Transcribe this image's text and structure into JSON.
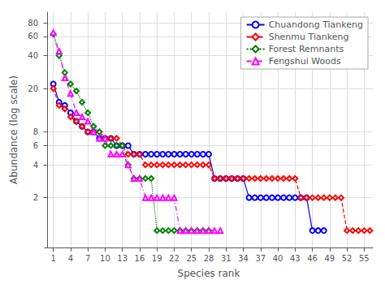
{
  "chart_data": {
    "type": "line",
    "xlabel": "Species rank",
    "ylabel": "Abundance (log scale)",
    "log": "y",
    "grid": true,
    "legend": "upper right",
    "xlim": [
      -0.5,
      56.5
    ],
    "ylim": [
      0.7,
      100
    ],
    "xticks": [
      1,
      4,
      7,
      10,
      13,
      16,
      19,
      22,
      25,
      28,
      31,
      34,
      37,
      40,
      43,
      46,
      49,
      52,
      55
    ],
    "yticks": [
      2,
      4,
      6,
      8,
      20,
      40,
      60,
      80
    ],
    "series": [
      {
        "name": "Chuandong Tiankeng",
        "color": "#0000ff",
        "marker": "circle",
        "line_style": "solid",
        "x": [
          1,
          2,
          3,
          4,
          5,
          6,
          7,
          8,
          9,
          10,
          11,
          12,
          13,
          14,
          15,
          16,
          17,
          18,
          19,
          20,
          21,
          22,
          23,
          24,
          25,
          26,
          27,
          28,
          29,
          30,
          31,
          32,
          33,
          34,
          35,
          36,
          37,
          38,
          39,
          40,
          41,
          42,
          43,
          44,
          45,
          46,
          47,
          48
        ],
        "values": [
          22,
          15,
          14,
          12,
          10,
          9,
          8,
          8,
          7,
          7,
          7,
          6,
          6,
          6,
          5,
          5,
          5,
          5,
          5,
          5,
          5,
          5,
          5,
          5,
          5,
          5,
          5,
          5,
          3,
          3,
          3,
          3,
          3,
          3,
          2,
          2,
          2,
          2,
          2,
          2,
          2,
          2,
          2,
          2,
          2,
          1,
          1,
          1
        ]
      },
      {
        "name": "Shenmu Tiankeng",
        "color": "#ff0000",
        "marker": "diamond",
        "line_style": "dashed",
        "x": [
          1,
          2,
          3,
          4,
          5,
          6,
          7,
          8,
          9,
          10,
          11,
          12,
          13,
          14,
          15,
          16,
          17,
          18,
          19,
          20,
          21,
          22,
          23,
          24,
          25,
          26,
          27,
          28,
          29,
          30,
          31,
          32,
          33,
          34,
          35,
          36,
          37,
          38,
          39,
          40,
          41,
          42,
          43,
          44,
          45,
          46,
          47,
          48,
          49,
          50,
          51,
          52,
          53,
          54,
          55,
          56
        ],
        "values": [
          20,
          14,
          13,
          11,
          10,
          9,
          8,
          8,
          8,
          7,
          7,
          7,
          6,
          5,
          5,
          5,
          4,
          4,
          4,
          4,
          4,
          4,
          4,
          4,
          4,
          4,
          4,
          4,
          3,
          3,
          3,
          3,
          3,
          3,
          3,
          3,
          3,
          3,
          3,
          3,
          3,
          3,
          3,
          2,
          2,
          2,
          2,
          2,
          2,
          2,
          2,
          1,
          1,
          1,
          1,
          1
        ]
      },
      {
        "name": "Forest Remnants",
        "color": "#008000",
        "marker": "diamond",
        "line_style": "dotted",
        "x": [
          1,
          2,
          3,
          4,
          5,
          6,
          7,
          8,
          9,
          10,
          11,
          12,
          13,
          14,
          15,
          16,
          17,
          18,
          19,
          20,
          21,
          22,
          23,
          24,
          25,
          26,
          27,
          28
        ],
        "values": [
          63,
          40,
          28,
          22,
          19,
          15,
          12,
          9,
          8,
          6,
          6,
          6,
          6,
          4,
          3,
          3,
          3,
          3,
          1,
          1,
          1,
          1,
          1,
          1,
          1,
          1,
          1,
          1
        ]
      },
      {
        "name": "Fengshui Woods",
        "color": "#ff00ff",
        "marker": "triangle",
        "line_style": "dashdot",
        "x": [
          1,
          2,
          3,
          4,
          5,
          6,
          7,
          8,
          9,
          10,
          11,
          12,
          13,
          14,
          15,
          16,
          17,
          18,
          19,
          20,
          21,
          22,
          23,
          24,
          25,
          26,
          27,
          28,
          29,
          30
        ],
        "values": [
          65,
          44,
          25,
          18,
          12,
          11,
          10,
          8,
          7,
          7,
          5,
          5,
          5,
          4,
          3,
          3,
          2,
          2,
          2,
          2,
          2,
          2,
          1,
          1,
          1,
          1,
          1,
          1,
          1,
          1
        ]
      }
    ]
  }
}
